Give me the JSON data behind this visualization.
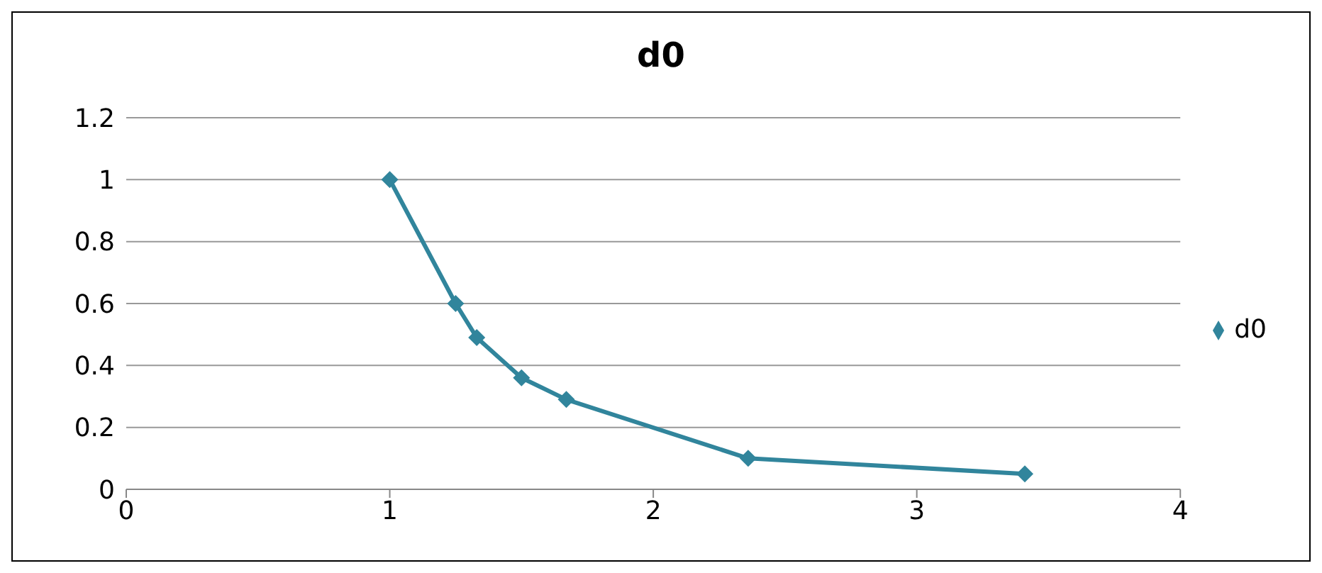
{
  "chart_data": {
    "type": "line",
    "title": "d0",
    "x": [
      1,
      1.25,
      1.33,
      1.5,
      1.67,
      2.36,
      3.41
    ],
    "series": [
      {
        "name": "d0",
        "color": "#31859c",
        "values": [
          1,
          0.6,
          0.49,
          0.36,
          0.29,
          0.1,
          0.05
        ]
      }
    ],
    "xlim": [
      0,
      4
    ],
    "xticks": [
      0,
      1,
      2,
      3,
      4
    ],
    "ylim": [
      0,
      1.2
    ],
    "yticks": [
      0,
      0.2,
      0.4,
      0.6,
      0.8,
      1,
      1.2
    ],
    "grid": "y",
    "legend": "right",
    "marker": "diamond",
    "line_style": "solid"
  }
}
